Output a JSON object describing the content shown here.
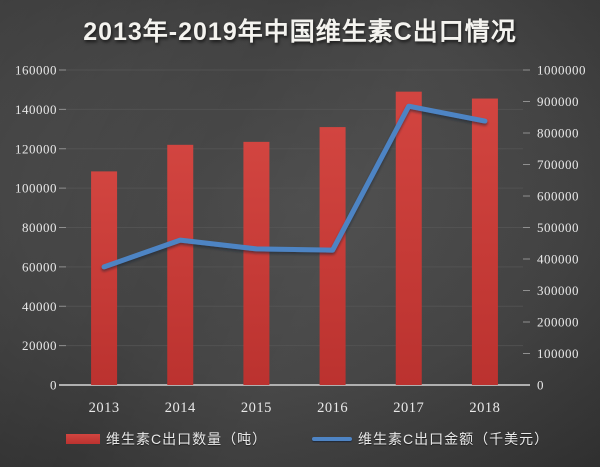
{
  "slide": {
    "title": "2013年-2019年中国维生素C出口情况"
  },
  "chart_data": {
    "type": "combo",
    "title": "2013年-2019年中国维生素C出口情况",
    "categories": [
      "2013",
      "2014",
      "2015",
      "2016",
      "2017",
      "2018"
    ],
    "series": [
      {
        "name": "维生素C出口数量（吨）",
        "type": "bar",
        "axis": "left",
        "color": "#c43a36",
        "values": [
          108500,
          122000,
          123500,
          131000,
          149000,
          145500
        ]
      },
      {
        "name": "维生素C出口金额（千美元）",
        "type": "line",
        "axis": "right",
        "color": "#4e84c4",
        "values": [
          375000,
          460000,
          432000,
          428000,
          885000,
          838000
        ]
      }
    ],
    "left_axis": {
      "min": 0,
      "max": 160000,
      "step": 20000,
      "tick_labels": [
        "0",
        "20000",
        "40000",
        "60000",
        "80000",
        "100000",
        "120000",
        "140000",
        "160000"
      ]
    },
    "right_axis": {
      "min": 0,
      "max": 1000000,
      "step": 100000,
      "tick_labels": [
        "0",
        "100000",
        "200000",
        "300000",
        "400000",
        "500000",
        "600000",
        "700000",
        "800000",
        "900000",
        "1000000"
      ]
    },
    "grid": true,
    "legend_position": "bottom",
    "colors": {
      "background": "#3d3d3d",
      "grid": "#565656",
      "axis_line": "#c0c0c0",
      "tick_mark": "#909090",
      "tick_text": "#e8e8e8",
      "bar_top": "#d24540",
      "bar_bottom": "#bb322f",
      "line": "#4e84c4"
    }
  }
}
